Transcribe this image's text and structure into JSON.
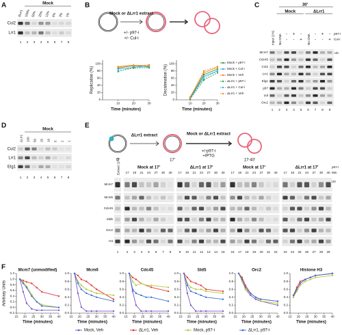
{
  "A": {
    "label": "A",
    "group": "Mock",
    "lanes": [
      "ΔLrr1",
      "100%",
      "50%",
      "25%",
      "12%",
      "6%",
      "3%",
      "1%"
    ],
    "rows": [
      "Cul2",
      "Lrr1"
    ],
    "numbers": [
      1,
      2,
      3,
      4,
      5,
      6,
      7,
      8
    ]
  },
  "B": {
    "label": "B",
    "extract": "Mock or ΔLrr1 extract",
    "treat": [
      "+/- p97-i",
      "+/- Cul-i"
    ],
    "xlabel": "Time (minutes)",
    "x": [
      10,
      20,
      30
    ],
    "xlim": [
      0,
      30
    ],
    "xticks": [
      10,
      20,
      30
    ],
    "ylim": [
      0,
      110
    ],
    "yticks": [
      0,
      20,
      40,
      60,
      80,
      100
    ],
    "series": [
      {
        "name": "Mock + p97-i",
        "color": "#2e9e3e",
        "dashed": false
      },
      {
        "name": "Mock + Cul-i",
        "color": "#3aa8d8",
        "dashed": false
      },
      {
        "name": "Mock + Veh",
        "color": "#f08a24",
        "dashed": false
      },
      {
        "name": "ΔLrr1 + p97-i",
        "color": "#2e9e3e",
        "dashed": true
      },
      {
        "name": "ΔLrr1 + Cul-i",
        "color": "#3aa8d8",
        "dashed": true
      },
      {
        "name": "ΔLrr1 + Veh",
        "color": "#f08a24",
        "dashed": true
      }
    ],
    "charts": [
      {
        "ylabel": "Replication (%)",
        "values": [
          [
            88,
            95,
            92
          ],
          [
            85,
            90,
            95
          ],
          [
            92,
            96,
            94
          ],
          [
            80,
            88,
            90
          ],
          [
            78,
            92,
            88
          ],
          [
            90,
            94,
            97
          ]
        ]
      },
      {
        "ylabel": "Decatenation (%)",
        "values": [
          [
            5,
            70,
            85
          ],
          [
            3,
            65,
            80
          ],
          [
            8,
            75,
            90
          ],
          [
            2,
            55,
            75
          ],
          [
            4,
            60,
            80
          ],
          [
            6,
            80,
            92
          ]
        ]
      }
    ]
  },
  "C": {
    "label": "C",
    "time": "30'",
    "groups": [
      "Mock",
      "ΔLrr1"
    ],
    "input": "Input (1%)",
    "nodna": "No DNA",
    "treatments": [
      {
        "name": "p97-i",
        "marks": [
          "-",
          "+",
          "-"
        ]
      },
      {
        "name": "Cul-i",
        "marks": [
          "-",
          "-",
          "+"
        ]
      }
    ],
    "rows": [
      "Mcm7",
      "Cdc45",
      "Cul2",
      "Lrr1",
      "Elg1",
      "p97",
      "Ltd",
      "Orc2"
    ],
    "ub": "Ub",
    "numbers": [
      1,
      2,
      3,
      4,
      5,
      6,
      7,
      8,
      9
    ]
  },
  "D": {
    "label": "D",
    "lane1": "ΔLrr1",
    "group": "Mock",
    "lanes": [
      "100",
      "50",
      "25",
      "10",
      "5",
      "2",
      "1"
    ],
    "rows": [
      "Cul2",
      "Lrr1",
      "Elg1"
    ],
    "numbers": [
      1,
      2,
      3,
      4,
      5,
      6,
      7,
      8
    ]
  },
  "E": {
    "label": "E",
    "schematic": {
      "extract1": "ΔLrr1 extract",
      "extract2": "Mock or ΔLrr1 extract",
      "treat": [
        "+/-p97-i",
        "+IPTG"
      ],
      "times": [
        "0'",
        "17'",
        "17-40'"
      ]
    },
    "extract": "Extract (1%)",
    "groups": [
      "Mock at 17'",
      "ΔLrr1 at 17'",
      "Mock at 17'",
      "ΔLrr1 at 17'"
    ],
    "minutes": [
      17,
      19,
      21,
      24,
      27,
      30,
      40
    ],
    "p97": "p97-i",
    "min": "Min",
    "rows": [
      "Mcm7",
      "Mcm6",
      "Cdc45",
      "Sld5",
      "Orc2",
      "H3"
    ],
    "ub": "Ub",
    "numbers": [
      1,
      2,
      3,
      4,
      5,
      6,
      7,
      8,
      9,
      10,
      11,
      12,
      13,
      14,
      15,
      16,
      17,
      18,
      19,
      20,
      21,
      22,
      23,
      24,
      25,
      26,
      27,
      28,
      29
    ]
  },
  "F": {
    "label": "F",
    "ylabel": "Arbitrary Units",
    "xlabel": "Time (minutes)",
    "x": [
      17,
      19,
      21,
      24,
      27,
      30,
      40
    ],
    "xlim": [
      15,
      40
    ],
    "xticks": [
      15,
      20,
      25,
      30,
      35,
      40
    ],
    "series": [
      {
        "name": "Mock, Veh",
        "color": "#7e57c2"
      },
      {
        "name": "ΔLrr1, Veh",
        "color": "#e53935"
      },
      {
        "name": "Mock, p97-i",
        "color": "#b5c93a"
      },
      {
        "name": "ΔLrr1, p97-i",
        "color": "#3f6fd8"
      }
    ],
    "charts": [
      {
        "title": "Mcm7 (unmodified)",
        "ylim": [
          -0.2,
          1.2
        ],
        "yticks": [
          -0.2,
          {
            "value": 0,
            "label": "0.0"
          },
          0.2,
          0.4,
          0.6,
          0.8,
          {
            "value": 1,
            "label": "1.0"
          },
          1.2
        ],
        "values": [
          [
            1,
            0.55,
            0.15,
            -0.05,
            -0.1,
            -0.1,
            -0.1
          ],
          [
            1,
            0.95,
            0.9,
            0.85,
            0.7,
            0.55,
            0.4
          ],
          [
            1,
            0.9,
            0.75,
            0.45,
            0.2,
            0.1,
            0
          ],
          [
            1,
            0.85,
            0.7,
            0.4,
            0.2,
            0.05,
            0
          ]
        ]
      },
      {
        "title": "Mcm6",
        "ylim": [
          0,
          1
        ],
        "yticks": [
          {
            "value": 0,
            "label": "0.0"
          },
          0.2,
          0.4,
          0.6,
          0.8,
          {
            "value": 1,
            "label": "1.0"
          }
        ],
        "values": [
          [
            1,
            0.5,
            0.15,
            0.05,
            0.05,
            0.05,
            0.05
          ],
          [
            1,
            0.95,
            0.85,
            0.8,
            0.7,
            0.6,
            0.35
          ],
          [
            1,
            0.8,
            0.7,
            0.6,
            0.55,
            0.5,
            0.45
          ],
          [
            1,
            0.75,
            0.6,
            0.5,
            0.45,
            0.4,
            0.3
          ]
        ]
      },
      {
        "title": "Cdc45",
        "ylim": [
          0,
          1
        ],
        "yticks": [
          {
            "value": 0,
            "label": "0.0"
          },
          0.2,
          0.4,
          0.6,
          0.8,
          {
            "value": 1,
            "label": "1.0"
          }
        ],
        "values": [
          [
            1,
            0.55,
            0.2,
            0.05,
            0.05,
            0.05,
            0.05
          ],
          [
            1,
            0.9,
            0.85,
            0.75,
            0.7,
            0.65,
            0.55
          ],
          [
            1,
            0.8,
            0.7,
            0.75,
            0.7,
            0.7,
            0.65
          ],
          [
            1,
            0.6,
            0.5,
            0.45,
            0.4,
            0.4,
            0.3
          ]
        ]
      },
      {
        "title": "Sld5",
        "ylim": [
          0,
          1
        ],
        "yticks": [
          {
            "value": 0,
            "label": "0.0"
          },
          0.2,
          0.4,
          0.6,
          0.8,
          {
            "value": 1,
            "label": "1.0"
          }
        ],
        "values": [
          [
            1,
            0.5,
            0.2,
            0.05,
            0.05,
            0.05,
            0.05
          ],
          [
            1,
            0.9,
            0.8,
            0.75,
            0.7,
            0.6,
            0.55
          ],
          [
            1,
            0.75,
            0.65,
            0.6,
            0.6,
            0.55,
            0.5
          ],
          [
            1,
            0.7,
            0.55,
            0.5,
            0.45,
            0.4,
            0.35
          ]
        ]
      },
      {
        "title": "Orc2",
        "ylim": [
          0,
          1
        ],
        "yticks": [
          {
            "value": 0,
            "label": "0.0"
          },
          0.2,
          0.4,
          0.6,
          0.8,
          {
            "value": 1,
            "label": "1.0"
          }
        ],
        "values": [
          [
            1,
            0.85,
            0.6,
            0.45,
            0.35,
            0.3,
            0.2
          ],
          [
            1,
            0.9,
            0.7,
            0.5,
            0.4,
            0.35,
            0.3
          ],
          [
            1,
            0.8,
            0.6,
            0.5,
            0.4,
            0.3,
            0.25
          ],
          [
            1,
            0.85,
            0.65,
            0.5,
            0.4,
            0.35,
            0.3
          ]
        ]
      },
      {
        "title": "Histone H3",
        "ylim": [
          0,
          1
        ],
        "yticks": [
          {
            "value": 0,
            "label": "0.0"
          },
          0.2,
          0.4,
          0.6,
          0.8,
          {
            "value": 1,
            "label": "1.0"
          }
        ],
        "values": [
          [
            0.4,
            0.6,
            0.75,
            0.85,
            0.9,
            0.95,
            1
          ],
          [
            0.45,
            0.65,
            0.8,
            0.85,
            0.9,
            0.95,
            1
          ],
          [
            0.4,
            0.55,
            0.7,
            0.8,
            0.85,
            0.9,
            0.95
          ],
          [
            0.45,
            0.6,
            0.75,
            0.85,
            0.9,
            0.95,
            1
          ]
        ]
      }
    ]
  }
}
